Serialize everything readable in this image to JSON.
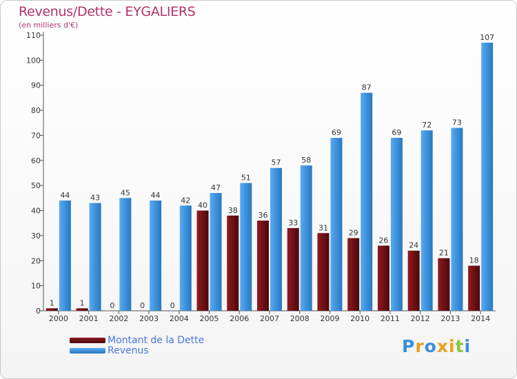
{
  "title": "Revenus/Dette - EYGALIERS",
  "subtitle": "(en milliers d'€)",
  "logo": {
    "text": "Proxiti",
    "letter_colors": [
      "#3a8fd8",
      "#e8a020",
      "#3a8fd8",
      "#e8a020",
      "#e8a020",
      "#8cc63f",
      "#3a8fd8"
    ]
  },
  "colors": {
    "dette": "#6b1014",
    "revenus": "#3a8fd8",
    "title": "#b0336a",
    "legend_text": "#4a78d8"
  },
  "chart_data": {
    "type": "bar",
    "categories": [
      "2000",
      "2001",
      "2002",
      "2003",
      "2004",
      "2005",
      "2006",
      "2007",
      "2008",
      "2009",
      "2010",
      "2011",
      "2012",
      "2013",
      "2014"
    ],
    "series": [
      {
        "name": "Montant de la Dette",
        "values": [
          1,
          1,
          0,
          0,
          0,
          40,
          38,
          36,
          33,
          31,
          29,
          26,
          24,
          21,
          18
        ]
      },
      {
        "name": "Revenus",
        "values": [
          44,
          43,
          45,
          44,
          42,
          47,
          51,
          57,
          58,
          69,
          87,
          69,
          72,
          73,
          107
        ]
      }
    ],
    "yticks": [
      0,
      10,
      20,
      30,
      40,
      50,
      60,
      70,
      80,
      90,
      100,
      110
    ],
    "ylim": [
      0,
      110
    ],
    "grid": false,
    "data_labels": true,
    "legend_position": "bottom-left"
  }
}
